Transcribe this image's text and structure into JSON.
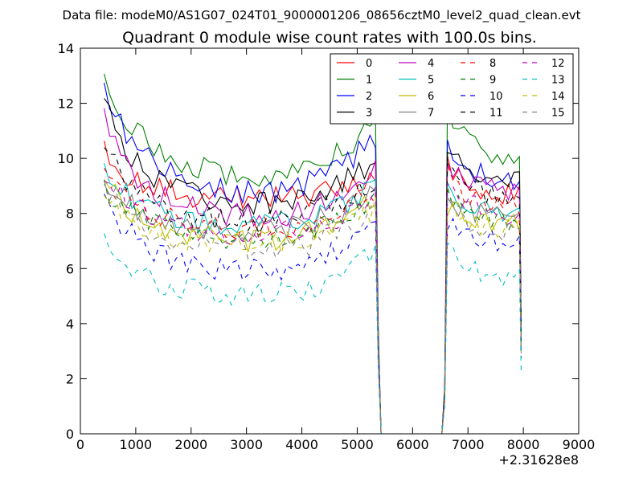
{
  "chart_data": {
    "type": "line",
    "suptitle": "Data file: modeM0/AS1G07_024T01_9000001206_08656cztM0_level2_quad_clean.evt",
    "title": "Quadrant 0 module wise count rates with 100.0s bins.",
    "xlabel": "",
    "ylabel": "",
    "x_offset_label": "+2.31628e8",
    "xlim": [
      0,
      9000
    ],
    "ylim": [
      0,
      14
    ],
    "xticks": [
      0,
      1000,
      2000,
      3000,
      4000,
      5000,
      6000,
      7000,
      8000,
      9000
    ],
    "xtick_labels": [
      "0",
      "1000",
      "2000",
      "3000",
      "4000",
      "5000",
      "6000",
      "7000",
      "8000",
      "9000"
    ],
    "yticks": [
      0,
      2,
      4,
      6,
      8,
      10,
      12,
      14
    ],
    "ytick_labels": [
      "0",
      "2",
      "4",
      "6",
      "8",
      "10",
      "12",
      "14"
    ],
    "grid": false,
    "legend_position": "top-right",
    "legend_columns": 4,
    "x": {
      "segment1": {
        "start": 430,
        "step": 100,
        "count": 50
      },
      "segment1_end": [
        5430,
        5530,
        6530
      ],
      "segment2": {
        "start": 6630,
        "step": 100,
        "count": 14
      }
    },
    "series": [
      {
        "name": "0",
        "color": "#ff0000",
        "dash": "solid",
        "base": 8.5,
        "start": 10.2,
        "end": 9.2,
        "seg2_start": 9.7,
        "seg2_base": 8.6
      },
      {
        "name": "1",
        "color": "#008000",
        "dash": "solid",
        "base": 9.3,
        "start": 13.2,
        "end": 11.3,
        "seg2_start": 11.8,
        "seg2_base": 10.0
      },
      {
        "name": "2",
        "color": "#0000ff",
        "dash": "solid",
        "base": 8.7,
        "start": 12.6,
        "end": 10.7,
        "seg2_start": 10.3,
        "seg2_base": 9.2
      },
      {
        "name": "3",
        "color": "#000000",
        "dash": "solid",
        "base": 8.3,
        "start": 12.0,
        "end": 10.0,
        "seg2_start": 10.5,
        "seg2_base": 9.1
      },
      {
        "name": "4",
        "color": "#bf00bf",
        "dash": "solid",
        "base": 7.8,
        "start": 11.5,
        "end": 9.6,
        "seg2_start": 9.8,
        "seg2_base": 8.7
      },
      {
        "name": "5",
        "color": "#00bfbf",
        "dash": "solid",
        "base": 7.5,
        "start": 9.7,
        "end": 9.0,
        "seg2_start": 8.9,
        "seg2_base": 8.0
      },
      {
        "name": "6",
        "color": "#bfbf00",
        "dash": "solid",
        "base": 6.9,
        "start": 9.4,
        "end": 8.6,
        "seg2_start": 8.3,
        "seg2_base": 7.6
      },
      {
        "name": "7",
        "color": "#808080",
        "dash": "solid",
        "base": 7.3,
        "start": 9.3,
        "end": 8.9,
        "seg2_start": 8.5,
        "seg2_base": 7.9
      },
      {
        "name": "8",
        "color": "#ff0000",
        "dash": "dashed",
        "base": 7.4,
        "start": 9.8,
        "end": 8.8,
        "seg2_start": 9.4,
        "seg2_base": 8.1
      },
      {
        "name": "9",
        "color": "#008000",
        "dash": "dashed",
        "base": 7.0,
        "start": 9.0,
        "end": 8.4,
        "seg2_start": 8.8,
        "seg2_base": 7.7
      },
      {
        "name": "10",
        "color": "#0000ff",
        "dash": "dashed",
        "base": 5.9,
        "start": 8.6,
        "end": 7.6,
        "seg2_start": 7.7,
        "seg2_base": 6.9
      },
      {
        "name": "11",
        "color": "#000000",
        "dash": "dashed",
        "base": 7.6,
        "start": 10.4,
        "end": 9.3,
        "seg2_start": 9.9,
        "seg2_base": 8.4
      },
      {
        "name": "12",
        "color": "#bf00bf",
        "dash": "dashed",
        "base": 7.2,
        "start": 9.5,
        "end": 8.6,
        "seg2_start": 9.1,
        "seg2_base": 7.9
      },
      {
        "name": "13",
        "color": "#00bfbf",
        "dash": "dashed",
        "base": 5.0,
        "start": 7.2,
        "end": 6.6,
        "seg2_start": 6.8,
        "seg2_base": 5.6
      },
      {
        "name": "14",
        "color": "#bfbf00",
        "dash": "dashed",
        "base": 6.8,
        "start": 9.0,
        "end": 8.2,
        "seg2_start": 8.1,
        "seg2_base": 7.4
      },
      {
        "name": "15",
        "color": "#808080",
        "dash": "dashed",
        "base": 6.6,
        "start": 9.2,
        "end": 8.1,
        "seg2_start": 8.3,
        "seg2_base": 7.3
      }
    ]
  }
}
